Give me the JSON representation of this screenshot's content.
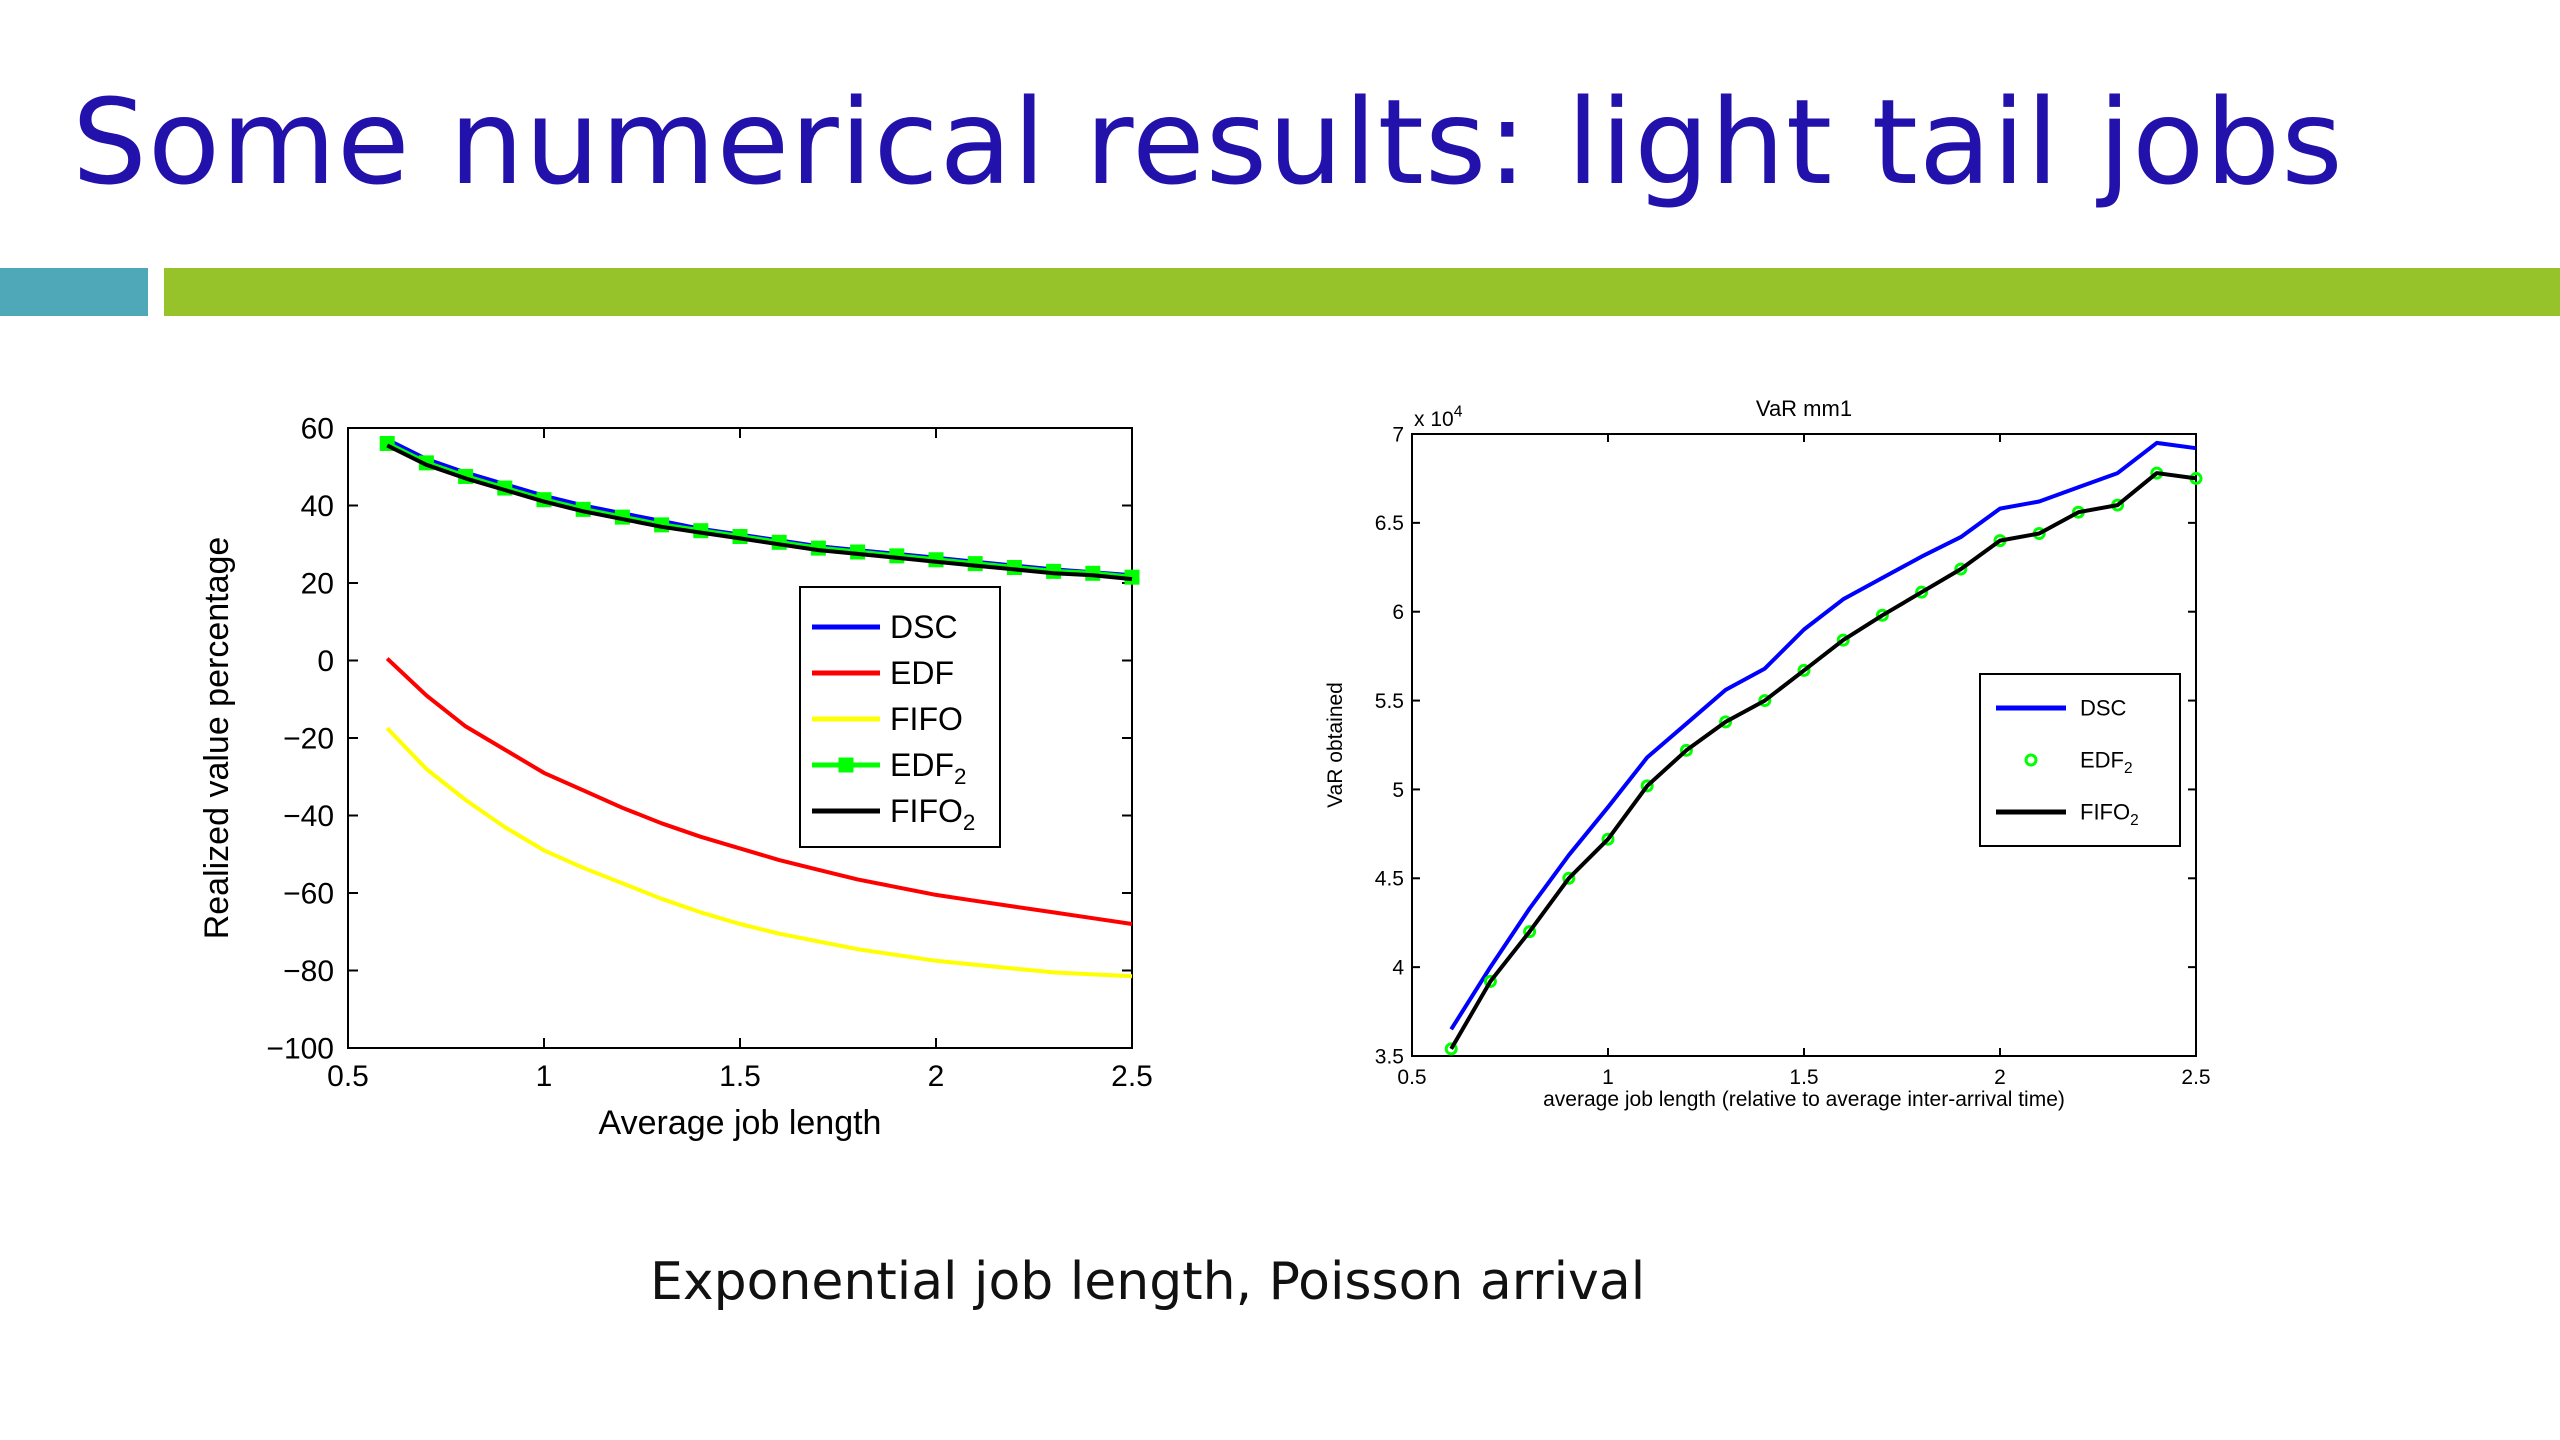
{
  "slide": {
    "title": "Some numerical results: light tail jobs",
    "caption": "Exponential job length, Poisson arrival",
    "accent_colors": {
      "title": "#2211AA",
      "bar_left": "#4FA8B8",
      "bar_right": "#96C32A"
    }
  },
  "chart_data": [
    {
      "type": "line",
      "title": "",
      "xlabel": "Average job length",
      "ylabel": "Realized value percentage",
      "xlim": [
        0.5,
        2.5
      ],
      "ylim": [
        -100,
        60
      ],
      "xticks": [
        0.5,
        1,
        1.5,
        2,
        2.5
      ],
      "xtick_labels": [
        "0.5",
        "1",
        "1.5",
        "2",
        "2.5"
      ],
      "yticks": [
        60,
        40,
        20,
        0,
        -20,
        -40,
        -60,
        -80,
        -100
      ],
      "ytick_labels": [
        "60",
        "40",
        "20",
        "0",
        "−20",
        "−40",
        "−60",
        "−80",
        "−100"
      ],
      "grid": false,
      "legend": "center-right",
      "x": [
        0.6,
        0.7,
        0.8,
        0.9,
        1.0,
        1.1,
        1.2,
        1.3,
        1.4,
        1.5,
        1.6,
        1.7,
        1.8,
        1.9,
        2.0,
        2.1,
        2.2,
        2.3,
        2.4,
        2.5
      ],
      "series": [
        {
          "name": "DSC",
          "color": "#0000FF",
          "marker": "none",
          "values": [
            57,
            52,
            48.5,
            45.5,
            42.5,
            40,
            38,
            36,
            34,
            32.5,
            31,
            29.5,
            28.5,
            27.5,
            26.5,
            25.5,
            24.5,
            23.5,
            22.8,
            22
          ]
        },
        {
          "name": "EDF",
          "color": "#FF0000",
          "marker": "none",
          "values": [
            0.5,
            -9,
            -17,
            -23,
            -29,
            -33.5,
            -38,
            -42,
            -45.5,
            -48.5,
            -51.5,
            -54,
            -56.5,
            -58.5,
            -60.5,
            -62,
            -63.5,
            -65,
            -66.5,
            -68
          ]
        },
        {
          "name": "FIFO",
          "color": "#FFFF00",
          "marker": "none",
          "values": [
            -17.5,
            -28,
            -36,
            -43,
            -49,
            -53.5,
            -57.5,
            -61.5,
            -65,
            -68,
            -70.5,
            -72.5,
            -74.5,
            -76,
            -77.5,
            -78.5,
            -79.5,
            -80.5,
            -81,
            -81.5
          ]
        },
        {
          "name": "EDF",
          "name_sub": "2",
          "color": "#00FF00",
          "marker": "square",
          "values": [
            56,
            51,
            47.5,
            44.5,
            41.5,
            39,
            37,
            35,
            33.5,
            32,
            30.5,
            29,
            28,
            27,
            26,
            25,
            24,
            23,
            22.5,
            21.5
          ]
        },
        {
          "name": "FIFO",
          "name_sub": "2",
          "color": "#000000",
          "marker": "none",
          "values": [
            55.5,
            50.5,
            47,
            44,
            41,
            38.5,
            36.5,
            34.5,
            33,
            31.5,
            30,
            28.5,
            27.5,
            26.5,
            25.5,
            24.5,
            23.5,
            22.5,
            22,
            21
          ]
        }
      ]
    },
    {
      "type": "line",
      "title": "VaR mm1",
      "xlabel": "average job length (relative to average inter-arrival time)",
      "ylabel": "VaR obtained",
      "y_multiplier": "x 10",
      "y_multiplier_exp": "4",
      "xlim": [
        0.5,
        2.5
      ],
      "ylim": [
        3.5,
        7
      ],
      "xticks": [
        0.5,
        1,
        1.5,
        2,
        2.5
      ],
      "xtick_labels": [
        "0.5",
        "1",
        "1.5",
        "2",
        "2.5"
      ],
      "yticks": [
        7,
        6.5,
        6,
        5.5,
        5,
        4.5,
        4,
        3.5
      ],
      "ytick_labels": [
        "7",
        "6.5",
        "6",
        "5.5",
        "5",
        "4.5",
        "4",
        "3.5"
      ],
      "grid": false,
      "legend": "center-right",
      "x": [
        0.6,
        0.7,
        0.8,
        0.9,
        1.0,
        1.1,
        1.2,
        1.3,
        1.4,
        1.5,
        1.6,
        1.7,
        1.8,
        1.9,
        2.0,
        2.1,
        2.2,
        2.3,
        2.4,
        2.5
      ],
      "series": [
        {
          "name": "DSC",
          "color": "#0000FF",
          "marker": "none",
          "values": [
            3.65,
            4.0,
            4.33,
            4.63,
            4.9,
            5.18,
            5.37,
            5.56,
            5.68,
            5.9,
            6.07,
            6.19,
            6.31,
            6.42,
            6.58,
            6.62,
            6.7,
            6.78,
            6.95,
            6.92
          ]
        },
        {
          "name": "EDF",
          "name_sub": "2",
          "color": "#00FF00",
          "marker": "circle",
          "values": [
            3.54,
            3.92,
            4.2,
            4.5,
            4.72,
            5.02,
            5.22,
            5.38,
            5.5,
            5.67,
            5.84,
            5.98,
            6.11,
            6.24,
            6.4,
            6.44,
            6.56,
            6.6,
            6.78,
            6.75
          ]
        },
        {
          "name": "FIFO",
          "name_sub": "2",
          "color": "#000000",
          "marker": "none",
          "values": [
            3.54,
            3.92,
            4.2,
            4.5,
            4.72,
            5.02,
            5.22,
            5.38,
            5.5,
            5.67,
            5.84,
            5.98,
            6.11,
            6.24,
            6.4,
            6.44,
            6.56,
            6.6,
            6.78,
            6.75
          ]
        }
      ]
    }
  ]
}
